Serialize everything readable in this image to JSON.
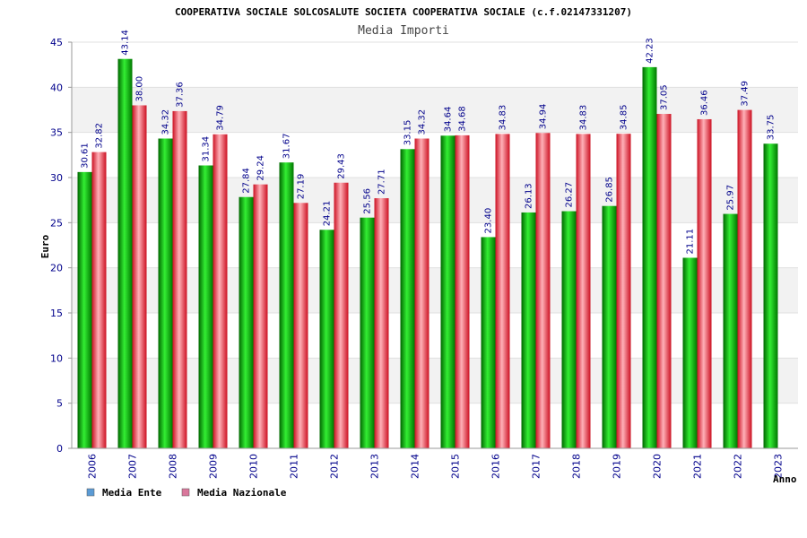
{
  "chart_data": {
    "type": "bar",
    "title": "COOPERATIVA SOCIALE SOLCOSALUTE SOCIETA COOPERATIVA SOCIALE (c.f.02147331207)",
    "subtitle": "Media Importi",
    "xlabel": "Anno",
    "ylabel": "Euro",
    "ylim": [
      0,
      45
    ],
    "yticks": [
      0,
      5,
      10,
      15,
      20,
      25,
      30,
      35,
      40,
      45
    ],
    "grid": true,
    "legend_position": "bottom-left",
    "categories": [
      "2006",
      "2007",
      "2008",
      "2009",
      "2010",
      "2011",
      "2012",
      "2013",
      "2014",
      "2015",
      "2016",
      "2017",
      "2018",
      "2019",
      "2020",
      "2021",
      "2022",
      "2023"
    ],
    "series": [
      {
        "name": "Media Ente",
        "color": "#00bb00",
        "legend_color": "#5b9bd5",
        "values": [
          30.61,
          43.14,
          34.32,
          31.34,
          27.84,
          31.67,
          24.21,
          25.56,
          33.15,
          34.64,
          23.4,
          26.13,
          26.27,
          26.85,
          42.23,
          21.11,
          25.97,
          33.75
        ],
        "labels": [
          "30.61",
          "43.14",
          "34.32",
          "31.34",
          "27.84",
          "31.67",
          "24.21",
          "25.56",
          "33.15",
          "34.64",
          "23.40",
          "26.13",
          "26.27",
          "26.85",
          "42.23",
          "21.11",
          "25.97",
          "33.75"
        ]
      },
      {
        "name": "Media Nazionale",
        "color": "#e8404a",
        "legend_color": "#d9779b",
        "values": [
          32.82,
          38.0,
          37.36,
          34.79,
          29.24,
          27.19,
          29.43,
          27.71,
          34.32,
          34.68,
          34.83,
          34.94,
          34.83,
          34.85,
          37.05,
          36.46,
          37.49,
          null
        ],
        "labels": [
          "32.82",
          "38.00",
          "37.36",
          "34.79",
          "29.24",
          "27.19",
          "29.43",
          "27.71",
          "34.32",
          "34.68",
          "34.83",
          "34.94",
          "34.83",
          "34.85",
          "37.05",
          "36.46",
          "37.49",
          null
        ]
      }
    ]
  }
}
